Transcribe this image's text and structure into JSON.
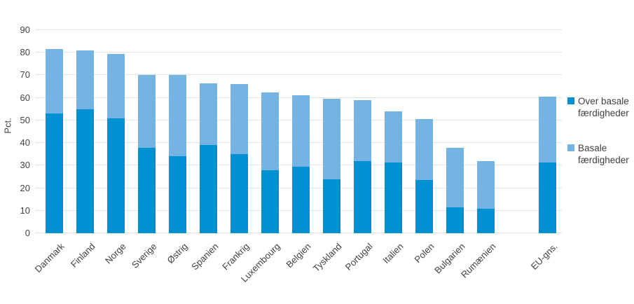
{
  "chart_data": {
    "type": "bar",
    "stacked": true,
    "title": "",
    "ylabel": "Pct.",
    "ylim": [
      0,
      90
    ],
    "ytick_interval": 10,
    "grid": true,
    "legend_position": "right",
    "gap_after_index": 14,
    "categories": [
      "Danmark",
      "Finland",
      "Norge",
      "Sverige",
      "Østrig",
      "Spanien",
      "Frankrig",
      "Luxembourg",
      "Belgien",
      "Tyskland",
      "Portugal",
      "Italien",
      "Polen",
      "Bulgarien",
      "Rumænien",
      "EU-gns."
    ],
    "series": [
      {
        "name": "Over basale færdigheder",
        "color": "#0090d2",
        "values": [
          53,
          55,
          51,
          38,
          34,
          39,
          35,
          28,
          29.5,
          24,
          32,
          31.5,
          23.5,
          11.5,
          11,
          31.5
        ]
      },
      {
        "name": "Basale færdigheder",
        "color": "#74b3e2",
        "values": [
          28.5,
          26,
          28.5,
          32,
          36,
          27.5,
          31,
          34.5,
          31.5,
          35.5,
          27,
          22.5,
          27,
          26.5,
          21,
          29
        ]
      }
    ],
    "colors": {
      "gridline": "#e2e2e0",
      "text": "#414141"
    }
  }
}
